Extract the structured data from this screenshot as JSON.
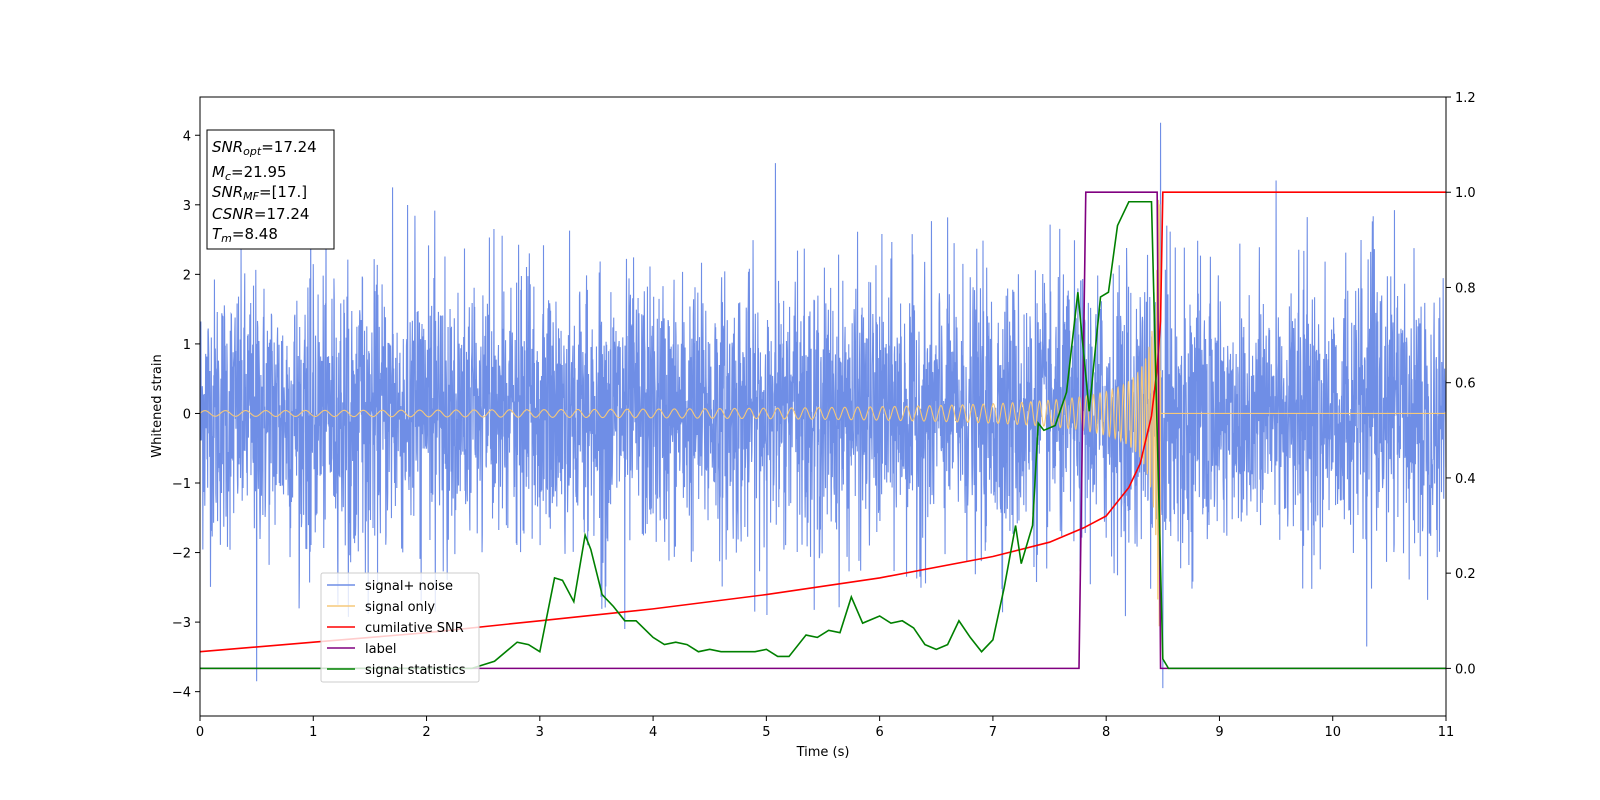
{
  "chart_data": {
    "type": "line",
    "xlabel": "Time (s)",
    "ylabel": "Whitened strain",
    "xlim": [
      0,
      11
    ],
    "ylim_left": [
      -4.35,
      4.55
    ],
    "ylim_right": [
      -0.1,
      1.2
    ],
    "x_ticks": [
      "0",
      "1",
      "2",
      "3",
      "4",
      "5",
      "6",
      "7",
      "8",
      "9",
      "10",
      "11"
    ],
    "y_ticks_left": [
      "−4",
      "−3",
      "−2",
      "−1",
      "0",
      "1",
      "2",
      "3",
      "4"
    ],
    "y_ticks_right": [
      "0.0",
      "0.2",
      "0.4",
      "0.6",
      "0.8",
      "1.0",
      "1.2"
    ],
    "info_box": [
      {
        "main": "SNR",
        "sub": "opt",
        "value": "=17.24"
      },
      {
        "main": "M",
        "sub": "c",
        "value": "=21.95"
      },
      {
        "main": "SNR",
        "sub": "MF",
        "value": "=[17.]"
      },
      {
        "main": "CSNR",
        "sub": "",
        "value": "=17.24"
      },
      {
        "main": "T",
        "sub": "m",
        "value": "=8.48"
      }
    ],
    "legend": {
      "placement": "lower-left",
      "entries": [
        {
          "label": "signal+ noise",
          "color": "#6f8ee6"
        },
        {
          "label": "signal only",
          "color": "#f5c87a"
        },
        {
          "label": "cumilative SNR",
          "color": "#ff0000"
        },
        {
          "label": "label",
          "color": "#800080"
        },
        {
          "label": "signal statistics",
          "color": "#008000"
        }
      ]
    },
    "series": [
      {
        "name": "signal+ noise",
        "axis": "left",
        "color": "#6f8ee6",
        "style": "noise",
        "noise_std": 1.0,
        "extremes": [
          {
            "x": 0.5,
            "y": -3.85
          },
          {
            "x": 1.7,
            "y": 3.25
          },
          {
            "x": 3.75,
            "y": -3.1
          },
          {
            "x": 5.08,
            "y": 3.6
          },
          {
            "x": 8.48,
            "y": 4.18
          },
          {
            "x": 8.5,
            "y": -3.95
          },
          {
            "x": 9.5,
            "y": 3.35
          },
          {
            "x": 10.3,
            "y": -3.35
          }
        ]
      },
      {
        "name": "signal only",
        "axis": "left",
        "color": "#f5c87a",
        "style": "chirp",
        "merger_time": 8.48,
        "amplitude_start": 0.04,
        "amplitude_end": 3.1
      },
      {
        "name": "cumilative SNR",
        "axis": "right",
        "color": "#ff0000",
        "x": [
          0,
          1,
          2,
          3,
          4,
          5,
          6,
          7,
          7.5,
          7.8,
          8.0,
          8.2,
          8.3,
          8.4,
          8.45,
          8.48,
          8.5,
          11
        ],
        "values": [
          0.035,
          0.055,
          0.075,
          0.1,
          0.125,
          0.155,
          0.19,
          0.235,
          0.265,
          0.295,
          0.32,
          0.38,
          0.43,
          0.53,
          0.63,
          0.73,
          1.0,
          1.0
        ]
      },
      {
        "name": "label",
        "axis": "right",
        "color": "#800080",
        "x": [
          0,
          7.76,
          7.82,
          8.45,
          8.48,
          11
        ],
        "values": [
          0,
          0,
          1.0,
          1.0,
          0,
          0
        ]
      },
      {
        "name": "signal statistics",
        "axis": "right",
        "color": "#008000",
        "x": [
          0,
          2.4,
          2.6,
          2.8,
          2.9,
          3.0,
          3.13,
          3.2,
          3.3,
          3.4,
          3.45,
          3.55,
          3.65,
          3.75,
          3.85,
          4.0,
          4.1,
          4.2,
          4.3,
          4.4,
          4.5,
          4.6,
          4.75,
          4.9,
          5.0,
          5.1,
          5.2,
          5.35,
          5.45,
          5.55,
          5.65,
          5.75,
          5.85,
          6.0,
          6.1,
          6.2,
          6.3,
          6.4,
          6.5,
          6.6,
          6.7,
          6.8,
          6.9,
          7.0,
          7.1,
          7.2,
          7.25,
          7.35,
          7.4,
          7.45,
          7.55,
          7.65,
          7.75,
          7.85,
          7.95,
          8.02,
          8.1,
          8.2,
          8.3,
          8.4,
          8.45,
          8.5,
          8.55,
          8.7,
          9.0,
          11
        ],
        "values": [
          0,
          0,
          0.015,
          0.055,
          0.05,
          0.035,
          0.19,
          0.185,
          0.14,
          0.28,
          0.25,
          0.155,
          0.13,
          0.1,
          0.1,
          0.065,
          0.05,
          0.055,
          0.05,
          0.035,
          0.04,
          0.035,
          0.035,
          0.035,
          0.04,
          0.025,
          0.025,
          0.07,
          0.065,
          0.08,
          0.075,
          0.15,
          0.095,
          0.11,
          0.095,
          0.1,
          0.085,
          0.05,
          0.04,
          0.05,
          0.1,
          0.065,
          0.035,
          0.06,
          0.17,
          0.3,
          0.22,
          0.3,
          0.515,
          0.5,
          0.51,
          0.58,
          0.79,
          0.54,
          0.78,
          0.79,
          0.93,
          0.98,
          0.98,
          0.98,
          0.5,
          0.02,
          0.0,
          0.0,
          0.0,
          0.0
        ]
      }
    ]
  }
}
